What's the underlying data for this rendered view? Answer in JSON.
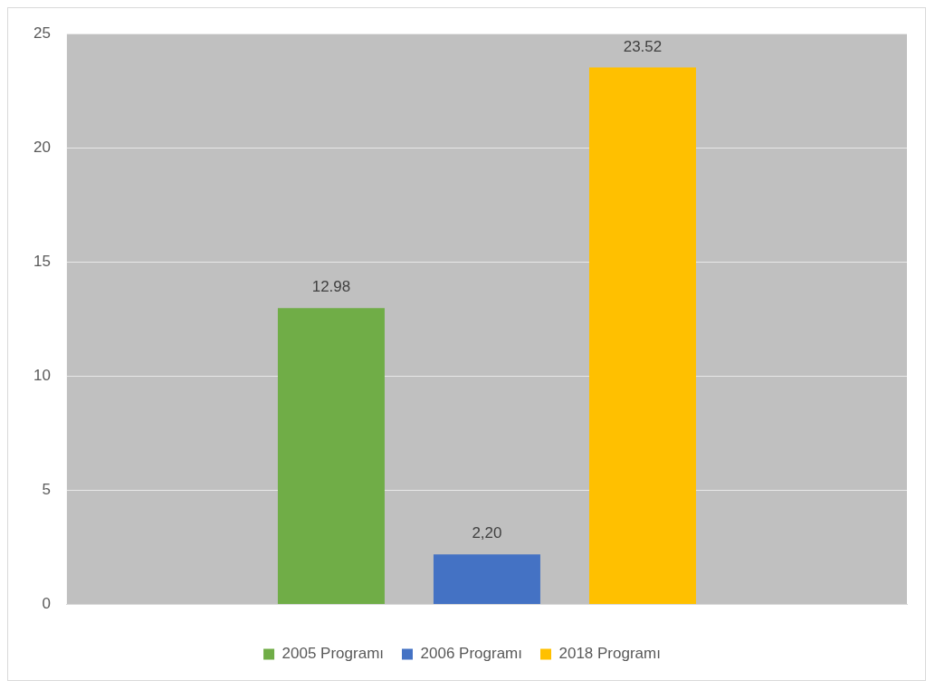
{
  "chart_data": {
    "type": "bar",
    "categories": [
      null
    ],
    "series": [
      {
        "name": "2005 Programı",
        "color": "#70ad47",
        "values": [
          12.98
        ],
        "value_labels": [
          "12.98"
        ]
      },
      {
        "name": "2006 Programı",
        "color": "#4472c4",
        "values": [
          2.2
        ],
        "value_labels": [
          "2,20"
        ]
      },
      {
        "name": "2018 Programı",
        "color": "#ffc000",
        "values": [
          23.52
        ],
        "value_labels": [
          "23.52"
        ]
      }
    ],
    "ylim": [
      0,
      25
    ],
    "yticks": [
      0,
      5,
      10,
      15,
      20,
      25
    ],
    "grid": "y",
    "legend": "bottom"
  }
}
